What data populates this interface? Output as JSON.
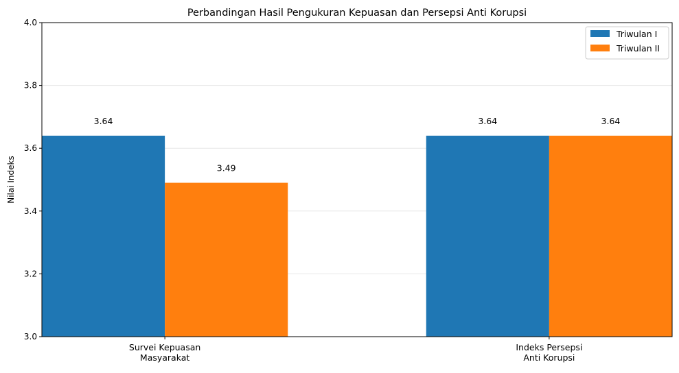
{
  "chart_data": {
    "type": "bar",
    "title": "Perbandingan Hasil Pengukuran Kepuasan dan Persepsi Anti Korupsi",
    "xlabel": "",
    "ylabel": "Nilai Indeks",
    "ylim": [
      3.0,
      4.0
    ],
    "yticks": [
      "3.0",
      "3.2",
      "3.4",
      "3.6",
      "3.8",
      "4.0"
    ],
    "grid": true,
    "legend_position": "top-right",
    "categories": [
      [
        "Survei Kepuasan",
        "Masyarakat"
      ],
      [
        "Indeks Persepsi",
        "Anti Korupsi"
      ]
    ],
    "series": [
      {
        "name": "Triwulan I",
        "color": "#1f77b4",
        "values": [
          3.64,
          3.64
        ],
        "labels": [
          "3.64",
          "3.64"
        ]
      },
      {
        "name": "Triwulan II",
        "color": "#ff7f0e",
        "values": [
          3.49,
          3.64
        ],
        "labels": [
          "3.49",
          "3.64"
        ]
      }
    ]
  }
}
